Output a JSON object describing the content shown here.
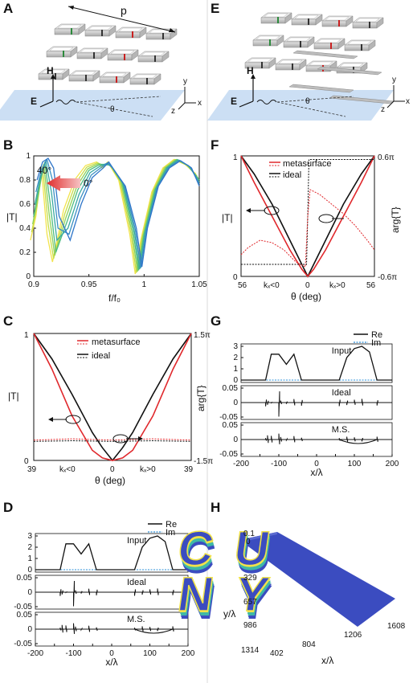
{
  "panels": {
    "A": {
      "label": "A",
      "period_label": "p",
      "h_label": "H",
      "e_label": "E",
      "theta_label": "θ",
      "ax_x": "x",
      "ax_y": "y",
      "ax_z": "z"
    },
    "E": {
      "label": "E",
      "h_label": "H",
      "e_label": "E",
      "theta_label": "θ",
      "ax_x": "x",
      "ax_y": "y",
      "ax_z": "z"
    },
    "B": {
      "label": "B",
      "ylabel": "|T|",
      "xlabel": "f/f₀",
      "angle_high": "40°",
      "angle_low": "0°",
      "yticks": [
        "0",
        "0.2",
        "0.4",
        "0.6",
        "0.8",
        "1"
      ],
      "xticks": [
        "0.9",
        "0.95",
        "1",
        "1.05"
      ]
    },
    "F": {
      "label": "F",
      "ylabel": "|T|",
      "ylabel_right": "arg{T}",
      "xlabel": "θ (deg)",
      "legend": [
        "metasurface",
        "ideal"
      ],
      "y_top": "1",
      "y_bottom": "0",
      "r_top": "0.6π",
      "r_bottom": "-0.6π",
      "x_left": "56",
      "x_mid": "0",
      "x_right": "56",
      "kneg": "kₓ<0",
      "kpos": "kₓ>0"
    },
    "C": {
      "label": "C",
      "ylabel": "|T|",
      "ylabel_right": "arg{T}",
      "xlabel": "θ (deg)",
      "legend": [
        "metasurface",
        "ideal"
      ],
      "y_top": "1",
      "y_bottom": "0",
      "r_top": "1.5π",
      "r_bottom": "-1.5π",
      "x_left": "39",
      "x_mid": "0",
      "x_right": "39",
      "kneg": "kₓ<0",
      "kpos": "kₓ>0"
    },
    "G": {
      "label": "G",
      "legend": [
        "Re",
        "Im"
      ],
      "titles": [
        "Input",
        "Ideal",
        "M.S."
      ],
      "yt1": [
        "0",
        "1",
        "2",
        "3"
      ],
      "yt2": [
        "-0.05",
        "0",
        "0.05"
      ],
      "yt3": [
        "-0.05",
        "0",
        "0.05"
      ],
      "xticks": [
        "-200",
        "-150",
        "-100",
        "-50",
        "0",
        "50",
        "100",
        "150",
        "200"
      ],
      "xlabel": "x/λ"
    },
    "D": {
      "label": "D",
      "legend": [
        "Re",
        "Im"
      ],
      "titles": [
        "Input",
        "Ideal",
        "M.S."
      ],
      "yt1": [
        "0",
        "1",
        "2",
        "3"
      ],
      "yt2": [
        "-0.05",
        "0",
        "0.05"
      ],
      "yt3": [
        "-0.05",
        "0",
        "0.05"
      ],
      "xticks": [
        "-200",
        "-150",
        "-100",
        "-50",
        "0",
        "50",
        "100",
        "150",
        "200"
      ],
      "xlabel": "x/λ"
    },
    "H": {
      "label": "H",
      "zticks": [
        "0.1",
        "0"
      ],
      "yticks": [
        "329",
        "657",
        "986",
        "1314"
      ],
      "xticks": [
        "402",
        "804",
        "1206",
        "1608"
      ],
      "ylabel": "y/λ",
      "xlabel": "x/λ",
      "text": "CUNY"
    }
  },
  "colors": {
    "meta_red": "#e0282c",
    "ideal_black": "#111111",
    "im_blue": "#2a8fd8",
    "sheet_blue": "#c7dcf3",
    "cube": "#d3d3d3",
    "gap_green": "#2c8a3c",
    "gap_red": "#c92020"
  },
  "chart_data": [
    {
      "panel": "B",
      "type": "line",
      "xlabel": "f/f₀",
      "ylabel": "|T|",
      "xlim": [
        0.9,
        1.05
      ],
      "ylim": [
        0,
        1
      ],
      "x": [
        0.9,
        0.905,
        0.91,
        0.915,
        0.92,
        0.93,
        0.94,
        0.95,
        0.96,
        0.965,
        0.97,
        0.98,
        0.99,
        0.995,
        1.0,
        1.01,
        1.02,
        1.03,
        1.04,
        1.05
      ],
      "series": [
        {
          "values": [
            0.3,
            0.5,
            0.9,
            0.35,
            0.12,
            0.55,
            0.8,
            0.92,
            0.95,
            0.9,
            0.95,
            0.8,
            0.35,
            0.02,
            0.3,
            0.7,
            0.9,
            0.97,
            0.93,
            0.85
          ]
        },
        {
          "values": [
            0.5,
            0.75,
            0.95,
            0.6,
            0.2,
            0.45,
            0.72,
            0.88,
            0.93,
            0.93,
            0.92,
            0.78,
            0.38,
            0.05,
            0.35,
            0.72,
            0.9,
            0.97,
            0.92,
            0.8
          ]
        },
        {
          "values": [
            0.8,
            0.95,
            0.98,
            0.9,
            0.5,
            0.3,
            0.6,
            0.82,
            0.9,
            0.95,
            0.88,
            0.75,
            0.4,
            0.08,
            0.4,
            0.75,
            0.9,
            0.96,
            0.9,
            0.75
          ]
        }
      ]
    },
    {
      "panel": "F",
      "type": "line",
      "xlabel": "θ (deg)",
      "x": [
        -56,
        -45,
        -30,
        -15,
        -5,
        0,
        5,
        15,
        30,
        45,
        56
      ],
      "series": [
        {
          "name": "metasurface",
          "values": [
            1.0,
            0.78,
            0.5,
            0.22,
            0.06,
            0.0,
            0.06,
            0.22,
            0.5,
            0.78,
            1.0
          ]
        },
        {
          "name": "ideal",
          "values": [
            1.0,
            0.85,
            0.6,
            0.3,
            0.1,
            0.0,
            0.1,
            0.3,
            0.6,
            0.85,
            1.0
          ]
        }
      ]
    },
    {
      "panel": "C",
      "type": "line",
      "xlabel": "θ (deg)",
      "x": [
        -39,
        -30,
        -20,
        -10,
        -5,
        0,
        5,
        10,
        20,
        30,
        39
      ],
      "series": [
        {
          "name": "metasurface",
          "values": [
            1.0,
            0.72,
            0.35,
            0.08,
            0.02,
            0.0,
            0.02,
            0.08,
            0.35,
            0.72,
            1.0
          ]
        },
        {
          "name": "ideal",
          "values": [
            1.0,
            0.8,
            0.52,
            0.22,
            0.1,
            0.0,
            0.1,
            0.22,
            0.52,
            0.8,
            1.0
          ]
        }
      ]
    },
    {
      "panel": "D/G-input",
      "type": "line",
      "xlabel": "x/λ",
      "x": [
        -200,
        -135,
        -120,
        -100,
        -80,
        -60,
        -40,
        -10,
        60,
        80,
        100,
        120,
        140,
        160,
        200
      ],
      "series": [
        {
          "name": "Re",
          "values": [
            0,
            0,
            2.3,
            2.3,
            1.4,
            2.3,
            0,
            0,
            0,
            2.0,
            2.8,
            3.0,
            2.5,
            0,
            0
          ]
        }
      ]
    }
  ]
}
